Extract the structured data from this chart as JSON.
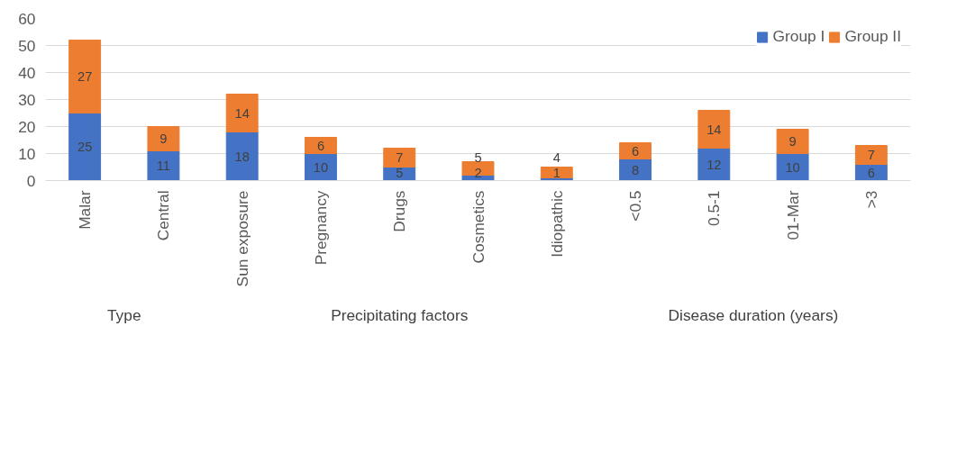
{
  "chart_data": {
    "type": "bar",
    "stacked": true,
    "categories": [
      "Malar",
      "Central",
      "Sun exposure",
      "Pregnancy",
      "Drugs",
      "Cosmetics",
      "Idiopathic",
      "<0.5",
      "0.5-1",
      "01-Mar",
      ">3"
    ],
    "series": [
      {
        "name": "Group I",
        "color": "#4472c4",
        "values": [
          25,
          11,
          18,
          10,
          5,
          2,
          1,
          8,
          12,
          10,
          6
        ]
      },
      {
        "name": "Group II",
        "color": "#ed7d31",
        "values": [
          27,
          9,
          14,
          6,
          7,
          5,
          4,
          6,
          14,
          9,
          7
        ]
      }
    ],
    "annotations": [
      "Type",
      "Precipitating factors",
      "Disease duration (years)"
    ],
    "ylim": [
      0,
      60
    ],
    "yticks": [
      0,
      10,
      20,
      30,
      40,
      50,
      60
    ],
    "grid": "y",
    "legend": "top right",
    "data_labels": true
  }
}
